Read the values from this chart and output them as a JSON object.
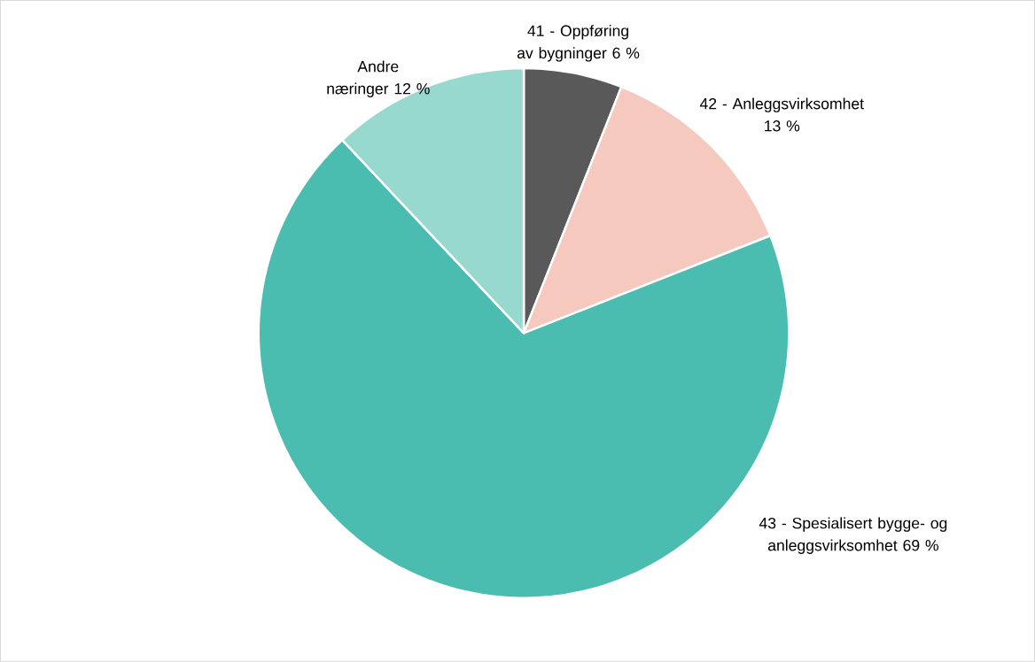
{
  "chart_data": {
    "type": "pie",
    "categories": [
      "41 - Oppføring av bygninger",
      "42 - Anleggsvirksomhet",
      "43 - Spesialisert bygge- og anleggsvirksomhet",
      "Andre næringer"
    ],
    "values": [
      6,
      13,
      69,
      12
    ],
    "value_labels": [
      "6 %",
      "13 %",
      "69 %",
      "12 %"
    ],
    "colors": [
      "#595959",
      "#f5c9bd",
      "#4bbdb0",
      "#98d9cf"
    ]
  }
}
